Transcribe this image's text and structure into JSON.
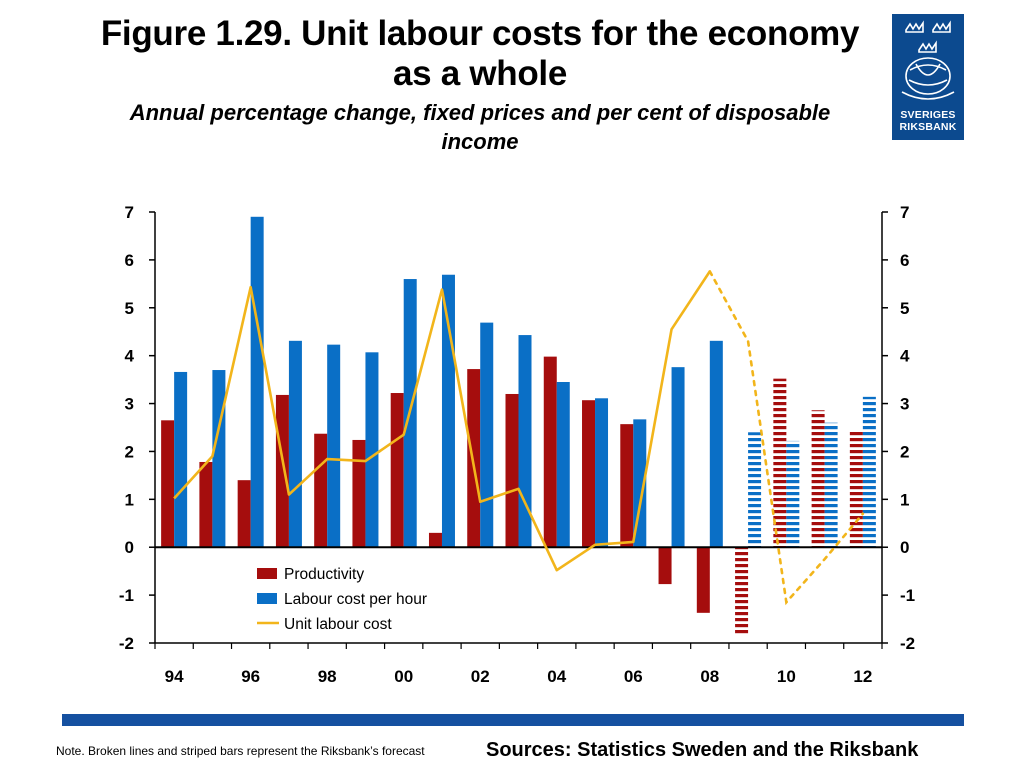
{
  "header": {
    "title_line1": "Figure 1.29. Unit labour costs for the economy",
    "title_line2": "as a whole",
    "subtitle_line1": "Annual percentage change, fixed prices and per cent of disposable",
    "subtitle_line2": "income"
  },
  "logo": {
    "line1": "SVERIGES",
    "line2": "RIKSBANK"
  },
  "footer": {
    "note": "Note. Broken lines and striped bars represent the Riksbank’s forecast",
    "sources": "Sources: Statistics Sweden and the Riksbank"
  },
  "colors": {
    "productivity": "#a50d0d",
    "labour_cost": "#0a6fc6",
    "unit_labour_cost": "#f2b51b",
    "footer_bar": "#1550a0",
    "logo_bg": "#0c4a8f"
  },
  "chart_data": {
    "type": "bar",
    "x": [
      1994,
      1995,
      1996,
      1997,
      1998,
      1999,
      2000,
      2001,
      2002,
      2003,
      2004,
      2005,
      2006,
      2007,
      2008,
      2009,
      2010,
      2011,
      2012
    ],
    "x_tick_labels": [
      "94",
      "96",
      "98",
      "00",
      "02",
      "04",
      "06",
      "08",
      "10",
      "12"
    ],
    "x_tick_years": [
      1994,
      1996,
      1998,
      2000,
      2002,
      2004,
      2006,
      2008,
      2010,
      2012
    ],
    "ylim": [
      -2,
      7
    ],
    "y_ticks": [
      "-2",
      "-1",
      "0",
      "1",
      "2",
      "3",
      "4",
      "5",
      "6",
      "7"
    ],
    "secondary_y_ticks": [
      "-2",
      "-1",
      "0",
      "1",
      "2",
      "3",
      "4",
      "5",
      "6",
      "7"
    ],
    "forecast_from": 2009,
    "legend_placement": "bottom-center",
    "series": [
      {
        "name": "Productivity",
        "kind": "bar",
        "values": [
          2.65,
          1.78,
          1.4,
          3.18,
          2.37,
          2.24,
          3.22,
          0.3,
          3.72,
          3.2,
          3.98,
          3.07,
          2.57,
          -0.77,
          -1.37,
          -1.83,
          3.52,
          2.86,
          2.42
        ]
      },
      {
        "name": "Labour cost per hour",
        "kind": "bar",
        "values": [
          3.66,
          3.7,
          6.9,
          4.31,
          4.23,
          4.07,
          5.6,
          5.69,
          4.69,
          4.43,
          3.45,
          3.11,
          2.67,
          3.76,
          4.31,
          2.4,
          2.22,
          2.6,
          3.14
        ]
      },
      {
        "name": "Unit labour cost",
        "kind": "line",
        "values": [
          1.02,
          1.9,
          5.43,
          1.1,
          1.84,
          1.8,
          2.35,
          5.38,
          0.95,
          1.22,
          -0.48,
          0.05,
          0.11,
          4.55,
          5.76,
          4.3,
          -1.15,
          -0.25,
          0.7
        ]
      }
    ]
  }
}
